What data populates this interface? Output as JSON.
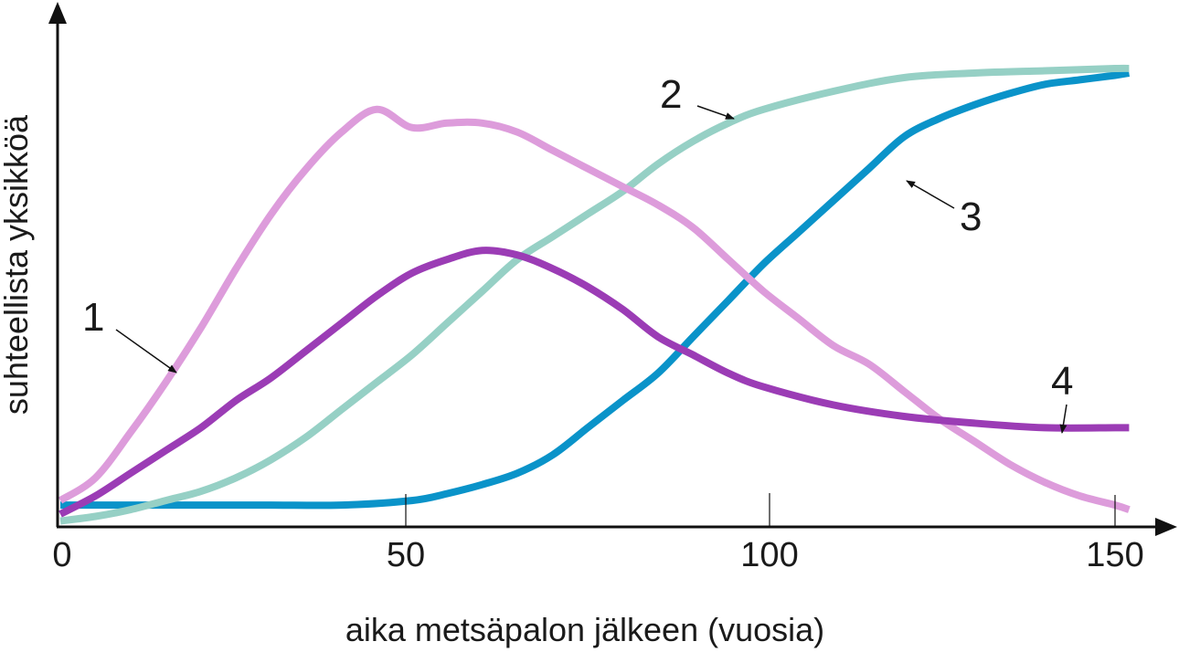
{
  "chart_data": {
    "type": "line",
    "title": "",
    "xlabel": "aika metsäpalon jälkeen (vuosia)",
    "ylabel": "suhteellista yksikköä",
    "xlim": [
      0,
      155
    ],
    "ylim": [
      0,
      100
    ],
    "x_ticks": [
      0,
      50,
      100,
      150
    ],
    "x_tick_labels": [
      "0",
      "50",
      "100",
      "150"
    ],
    "y_ticks": [],
    "grid": false,
    "legend": "callout labels with arrows",
    "series": [
      {
        "name": "1",
        "color": "#dd9cdb",
        "x": [
          0,
          5,
          10,
          15,
          20,
          25,
          30,
          35,
          40,
          45,
          50,
          55,
          60,
          65,
          70,
          75,
          80,
          85,
          90,
          95,
          100,
          105,
          110,
          115,
          120,
          125,
          130,
          135,
          140,
          145,
          150,
          152
        ],
        "values": [
          5,
          10,
          20,
          31,
          43,
          56,
          68,
          78,
          86,
          91,
          87,
          88,
          88,
          86,
          82,
          78,
          74,
          70,
          65,
          58,
          51,
          45,
          39,
          35,
          29,
          23,
          18,
          13,
          9,
          6,
          4,
          3
        ]
      },
      {
        "name": "2",
        "color": "#96d0c5",
        "x": [
          0,
          5,
          10,
          15,
          20,
          25,
          30,
          35,
          40,
          45,
          50,
          55,
          60,
          65,
          70,
          75,
          80,
          85,
          90,
          95,
          100,
          110,
          120,
          130,
          140,
          150,
          152
        ],
        "values": [
          0.5,
          1.5,
          3,
          5,
          7,
          10,
          14,
          19,
          25,
          31,
          37,
          44,
          51,
          58,
          63,
          68,
          73,
          79,
          84,
          88,
          91,
          95,
          98,
          99,
          99.5,
          100,
          100
        ]
      },
      {
        "name": "3",
        "color": "#0a93c9",
        "x": [
          0,
          10,
          20,
          30,
          40,
          50,
          55,
          60,
          65,
          70,
          75,
          80,
          85,
          90,
          95,
          100,
          105,
          110,
          115,
          120,
          125,
          130,
          135,
          140,
          145,
          150,
          152
        ],
        "values": [
          4,
          4,
          4,
          4,
          4,
          5,
          6.5,
          8.5,
          11,
          15,
          21,
          27,
          33,
          41,
          49,
          57,
          64,
          71,
          78,
          85,
          89,
          92,
          94.5,
          96.5,
          97.5,
          98.5,
          99
        ]
      },
      {
        "name": "4",
        "color": "#9b3cb5",
        "x": [
          0,
          5,
          10,
          15,
          20,
          25,
          30,
          35,
          40,
          45,
          50,
          55,
          60,
          65,
          70,
          75,
          80,
          85,
          90,
          95,
          100,
          110,
          120,
          130,
          140,
          150,
          152
        ],
        "values": [
          2,
          6,
          11,
          16,
          21,
          27,
          32,
          38,
          44,
          50,
          55,
          58,
          60,
          59,
          56,
          52,
          47,
          41,
          37,
          33,
          30,
          26,
          23.5,
          22,
          21,
          21,
          21
        ]
      }
    ],
    "annotations": [
      {
        "text": "1",
        "series": "1"
      },
      {
        "text": "2",
        "series": "2"
      },
      {
        "text": "3",
        "series": "3"
      },
      {
        "text": "4",
        "series": "4"
      }
    ]
  }
}
